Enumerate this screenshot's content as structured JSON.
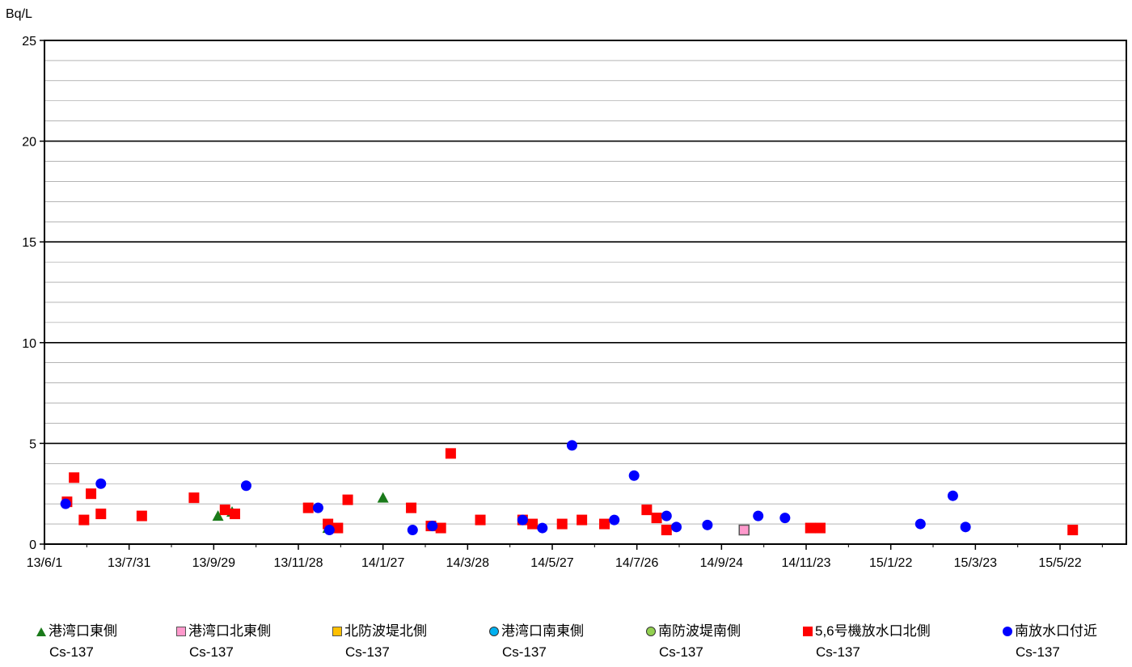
{
  "chart_data": {
    "type": "scatter",
    "ylabel": "Bq/L",
    "ylim": [
      0,
      25
    ],
    "yticks": [
      "0",
      "5",
      "10",
      "15",
      "20",
      "25"
    ],
    "xlim": [
      "2013-06-01",
      "2015-07-08"
    ],
    "xticks": [
      {
        "date": "2013-06-01",
        "label": "13/6/1"
      },
      {
        "date": "2013-07-31",
        "label": "13/7/31"
      },
      {
        "date": "2013-09-29",
        "label": "13/9/29"
      },
      {
        "date": "2013-11-28",
        "label": "13/11/28"
      },
      {
        "date": "2014-01-27",
        "label": "14/1/27"
      },
      {
        "date": "2014-03-28",
        "label": "14/3/28"
      },
      {
        "date": "2014-05-27",
        "label": "14/5/27"
      },
      {
        "date": "2014-07-26",
        "label": "14/7/26"
      },
      {
        "date": "2014-09-24",
        "label": "14/9/24"
      },
      {
        "date": "2014-11-23",
        "label": "14/11/23"
      },
      {
        "date": "2015-01-22",
        "label": "15/1/22"
      },
      {
        "date": "2015-03-23",
        "label": "15/3/23"
      },
      {
        "date": "2015-05-22",
        "label": "15/5/22"
      }
    ],
    "grid": "horizontal",
    "legend_position": "bottom",
    "series": [
      {
        "name": "港湾口東側",
        "name_line2": "Cs-137",
        "marker": "triangle",
        "color": "#1a7a1a",
        "points": [
          [
            "2013-10-02",
            1.4
          ],
          [
            "2013-10-12",
            1.6
          ],
          [
            "2013-12-19",
            0.8
          ],
          [
            "2014-01-27",
            2.3
          ]
        ]
      },
      {
        "name": "港湾口北東側",
        "name_line2": "Cs-137",
        "marker": "square-outline",
        "color": "#ff99cc",
        "points": [
          [
            "2014-10-10",
            0.7
          ]
        ]
      },
      {
        "name": "北防波堤北側",
        "name_line2": "Cs-137",
        "marker": "square-outline",
        "color": "#ffc000",
        "points": []
      },
      {
        "name": "港湾口南東側",
        "name_line2": "Cs-137",
        "marker": "circle",
        "color": "#00b0f0",
        "points": []
      },
      {
        "name": "南防波堤南側",
        "name_line2": "Cs-137",
        "marker": "circle",
        "color": "#92d050",
        "points": []
      },
      {
        "name": "5,6号機放水口北側",
        "name_line2": "Cs-137",
        "marker": "square",
        "color": "#ff0000",
        "points": [
          [
            "2013-06-17",
            2.1
          ],
          [
            "2013-06-22",
            3.3
          ],
          [
            "2013-06-29",
            1.2
          ],
          [
            "2013-07-04",
            2.5
          ],
          [
            "2013-07-11",
            1.5
          ],
          [
            "2013-08-09",
            1.4
          ],
          [
            "2013-09-15",
            2.3
          ],
          [
            "2013-10-07",
            1.7
          ],
          [
            "2013-10-14",
            1.5
          ],
          [
            "2013-12-05",
            1.8
          ],
          [
            "2013-12-19",
            1.0
          ],
          [
            "2013-12-26",
            0.8
          ],
          [
            "2014-01-02",
            2.2
          ],
          [
            "2014-02-16",
            1.8
          ],
          [
            "2014-03-02",
            0.9
          ],
          [
            "2014-03-09",
            0.8
          ],
          [
            "2014-03-16",
            4.5
          ],
          [
            "2014-04-06",
            1.2
          ],
          [
            "2014-05-06",
            1.2
          ],
          [
            "2014-05-13",
            1.0
          ],
          [
            "2014-06-03",
            1.0
          ],
          [
            "2014-06-17",
            1.2
          ],
          [
            "2014-07-03",
            1.0
          ],
          [
            "2014-08-02",
            1.7
          ],
          [
            "2014-08-09",
            1.3
          ],
          [
            "2014-08-16",
            0.7
          ],
          [
            "2014-11-26",
            0.8
          ],
          [
            "2014-12-03",
            0.8
          ],
          [
            "2015-05-31",
            0.7
          ]
        ]
      },
      {
        "name": "南放水口付近",
        "name_line2": "Cs-137",
        "marker": "circle",
        "color": "#0000ff",
        "points": [
          [
            "2013-06-16",
            2.0
          ],
          [
            "2013-07-11",
            3.0
          ],
          [
            "2013-10-22",
            2.9
          ],
          [
            "2013-12-12",
            1.8
          ],
          [
            "2013-12-20",
            0.7
          ],
          [
            "2014-02-17",
            0.7
          ],
          [
            "2014-03-03",
            0.9
          ],
          [
            "2014-05-06",
            1.2
          ],
          [
            "2014-05-20",
            0.8
          ],
          [
            "2014-06-10",
            4.9
          ],
          [
            "2014-07-10",
            1.2
          ],
          [
            "2014-07-24",
            3.4
          ],
          [
            "2014-08-16",
            1.4
          ],
          [
            "2014-08-23",
            0.85
          ],
          [
            "2014-09-14",
            0.95
          ],
          [
            "2014-10-20",
            1.4
          ],
          [
            "2014-11-08",
            1.3
          ],
          [
            "2015-02-12",
            1.0
          ],
          [
            "2015-03-07",
            2.4
          ],
          [
            "2015-03-16",
            0.85
          ]
        ]
      }
    ]
  }
}
